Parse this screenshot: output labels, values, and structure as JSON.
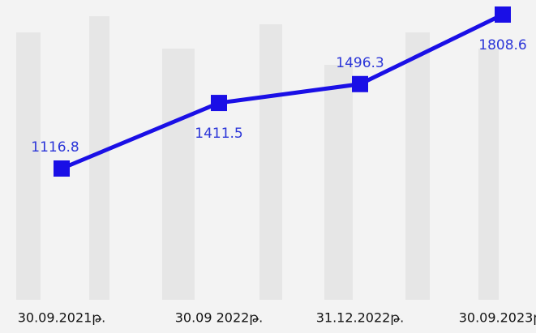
{
  "chart_data": {
    "type": "line",
    "categories": [
      "30.09.2021թ.",
      "30.09 2022թ.",
      "31.12.2022թ.",
      "30.09.2023թ."
    ],
    "values": [
      1116.8,
      1411.5,
      1496.3,
      1808.6
    ],
    "color": "#1a0fe6"
  }
}
